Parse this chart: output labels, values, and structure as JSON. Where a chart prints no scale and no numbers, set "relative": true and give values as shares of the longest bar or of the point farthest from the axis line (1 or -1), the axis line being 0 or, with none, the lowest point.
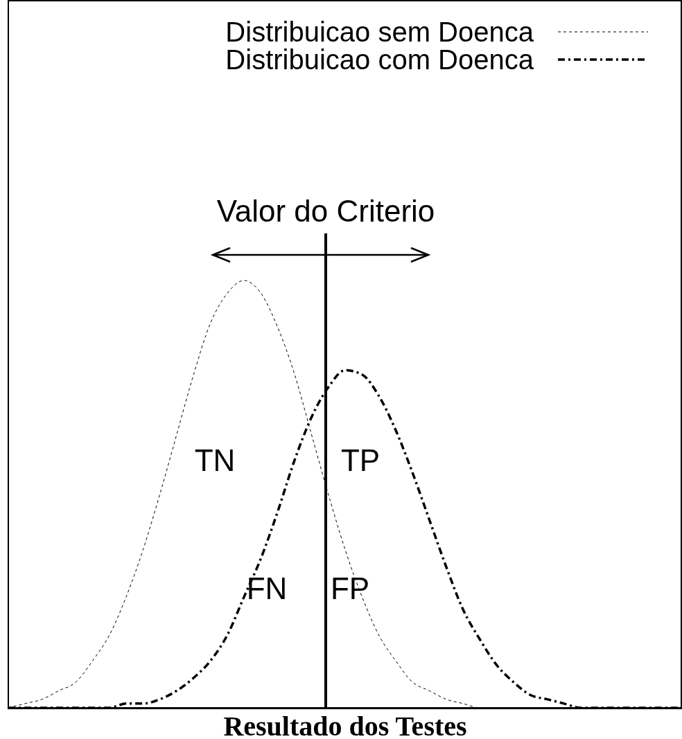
{
  "chart_data": {
    "type": "line",
    "relative": true,
    "xlabel": "Resultado dos Testes",
    "legend": "top right",
    "categories": [
      null,
      null,
      null,
      null,
      null,
      null,
      null,
      null,
      null,
      null,
      null,
      null,
      null,
      null,
      null,
      null,
      null,
      null,
      null,
      null,
      null,
      null,
      null,
      null,
      null,
      null,
      null,
      null,
      null,
      null,
      null,
      null,
      null,
      null,
      null,
      null,
      null,
      null,
      null,
      null,
      null
    ],
    "series": [
      {
        "name": "Distribuicao sem Doenca",
        "color": "#000000",
        "line_style": "dotted",
        "values": [
          0,
          0.01,
          0.02,
          0.04,
          0.06,
          0.11,
          0.17,
          0.26,
          0.37,
          0.5,
          0.64,
          0.78,
          0.9,
          0.97,
          1,
          0.97,
          0.89,
          0.78,
          0.64,
          0.5,
          0.37,
          0.26,
          0.17,
          0.11,
          0.06,
          0.04,
          0.02,
          0.01,
          0,
          0,
          0,
          0,
          0,
          0,
          0,
          0,
          0,
          0,
          0,
          0,
          0
        ]
      },
      {
        "name": "Distribuicao com Doenca",
        "color": "#000000",
        "line_style": "dashdot",
        "values": [
          0,
          0,
          0,
          0,
          0,
          0,
          0,
          0.01,
          0.01,
          0.02,
          0.04,
          0.07,
          0.11,
          0.17,
          0.26,
          0.35,
          0.46,
          0.58,
          0.68,
          0.75,
          0.79,
          0.78,
          0.73,
          0.65,
          0.55,
          0.44,
          0.33,
          0.23,
          0.16,
          0.1,
          0.06,
          0.03,
          0.02,
          0.01,
          0,
          0,
          0,
          0,
          0,
          0,
          0
        ]
      }
    ],
    "annotations": [
      "Valor do Criterio",
      "TN",
      "TP",
      "FN",
      "FP"
    ]
  }
}
